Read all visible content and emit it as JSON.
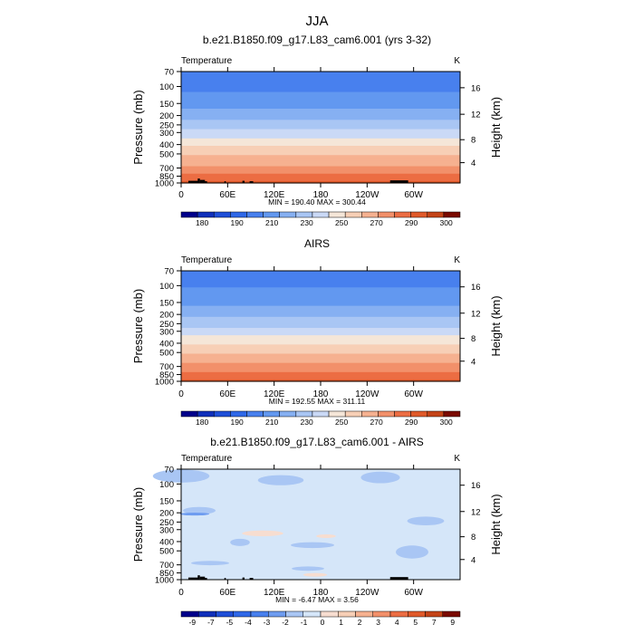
{
  "page": {
    "title": "JJA",
    "field_label": "Temperature",
    "unit_label": "K",
    "ylabel_left": "Pressure (mb)",
    "ylabel_right": "Height (km)"
  },
  "axes": {
    "x_ticks": [
      "0",
      "60E",
      "120E",
      "180",
      "120W",
      "60W"
    ],
    "x_tick_values": [
      0,
      60,
      120,
      180,
      240,
      300
    ],
    "xlim": [
      0,
      360
    ],
    "y_ticks": [
      "70",
      "100",
      "150",
      "200",
      "250",
      "300",
      "400",
      "500",
      "700",
      "850",
      "1000"
    ],
    "y_tick_values": [
      70,
      100,
      150,
      200,
      250,
      300,
      400,
      500,
      700,
      850,
      1000
    ],
    "ylim": [
      1000,
      70
    ],
    "y_scale": "log",
    "height_ticks": [
      "4",
      "8",
      "12",
      "16"
    ],
    "height_tick_pressures": [
      616,
      356,
      194,
      103
    ]
  },
  "chart_data": [
    {
      "type": "heatmap",
      "title": "b.e21.B1850.f09_g17.L83_cam6.001 (yrs 3-32)",
      "stats": "MIN = 190.40   MAX = 300.44",
      "colorbar_labels": [
        "180",
        "190",
        "210",
        "230",
        "250",
        "270",
        "290",
        "300"
      ],
      "levels": [
        175,
        180,
        185,
        190,
        200,
        210,
        220,
        230,
        240,
        250,
        260,
        270,
        280,
        290,
        295,
        300
      ],
      "colors": [
        "#00008b",
        "#1030bb",
        "#1f4fd8",
        "#2f68e8",
        "#4880ee",
        "#6298f0",
        "#86b0f2",
        "#a9c6f4",
        "#cad9f6",
        "#f5e6d8",
        "#f7cfb6",
        "#f6b190",
        "#f2906a",
        "#ec6d43",
        "#e05a2a",
        "#c44418",
        "#7a0a00"
      ],
      "profile": [
        [
          70,
          193
        ],
        [
          100,
          197
        ],
        [
          150,
          206
        ],
        [
          200,
          216
        ],
        [
          250,
          225
        ],
        [
          300,
          234
        ],
        [
          400,
          248
        ],
        [
          500,
          258
        ],
        [
          700,
          272
        ],
        [
          850,
          282
        ],
        [
          1000,
          292
        ]
      ],
      "topography": true
    },
    {
      "type": "heatmap",
      "title": "AIRS",
      "stats": "MIN = 192.55   MAX = 311.11",
      "colorbar_labels": [
        "180",
        "190",
        "210",
        "230",
        "250",
        "270",
        "290",
        "300"
      ],
      "levels": [
        175,
        180,
        185,
        190,
        200,
        210,
        220,
        230,
        240,
        250,
        260,
        270,
        280,
        290,
        295,
        300
      ],
      "colors": [
        "#00008b",
        "#1030bb",
        "#1f4fd8",
        "#2f68e8",
        "#4880ee",
        "#6298f0",
        "#86b0f2",
        "#a9c6f4",
        "#cad9f6",
        "#f5e6d8",
        "#f7cfb6",
        "#f6b190",
        "#f2906a",
        "#ec6d43",
        "#e05a2a",
        "#c44418",
        "#7a0a00"
      ],
      "profile": [
        [
          70,
          195
        ],
        [
          100,
          199
        ],
        [
          150,
          208
        ],
        [
          200,
          217
        ],
        [
          250,
          226
        ],
        [
          300,
          235
        ],
        [
          400,
          249
        ],
        [
          500,
          259
        ],
        [
          700,
          274
        ],
        [
          850,
          284
        ],
        [
          1000,
          294
        ]
      ],
      "topography": false
    },
    {
      "type": "heatmap",
      "title": "b.e21.B1850.f09_g17.L83_cam6.001 - AIRS",
      "stats": "MIN = -6.47   MAX = 3.56",
      "colorbar_labels": [
        "-9",
        "-7",
        "-5",
        "-4",
        "-3",
        "-2",
        "-1",
        "0",
        "1",
        "2",
        "3",
        "4",
        "5",
        "7",
        "9"
      ],
      "levels": [
        -9,
        -7,
        -5,
        -4,
        -3,
        -2,
        -1,
        0,
        1,
        2,
        3,
        4,
        5,
        7,
        9
      ],
      "colors": [
        "#00008b",
        "#1030bb",
        "#1f4fd8",
        "#2f68e8",
        "#4880ee",
        "#6e9cf0",
        "#a9c6f4",
        "#d5e6f9",
        "#f7ddd0",
        "#f7cfb6",
        "#f6b190",
        "#f2906a",
        "#ec6d43",
        "#e05a2a",
        "#c44418",
        "#7a0a00"
      ],
      "topography": true
    }
  ]
}
